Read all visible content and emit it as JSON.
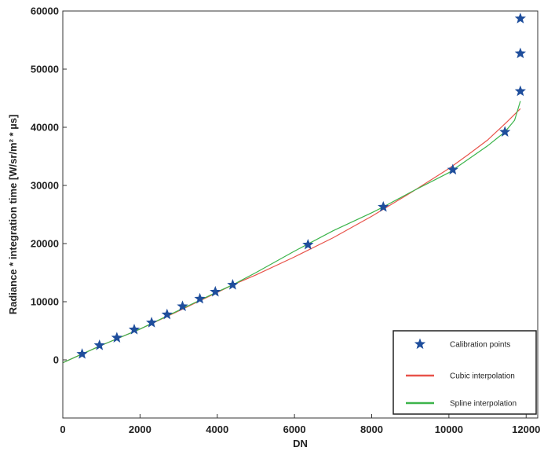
{
  "chart_data": {
    "type": "line",
    "xlabel": "DN",
    "ylabel": "Radiance * integration time [W/sr/m² * µs]",
    "xlim": [
      0,
      12300
    ],
    "ylim": [
      -10000,
      60000
    ],
    "xticks": [
      0,
      2000,
      4000,
      6000,
      8000,
      10000,
      12000
    ],
    "yticks": [
      0,
      10000,
      20000,
      30000,
      40000,
      50000,
      60000
    ],
    "grid": false,
    "legend_position": "bottom-right",
    "colors": {
      "calibration": "#1f4e9c",
      "cubic": "#e8534a",
      "spline": "#3cb44b"
    },
    "series": [
      {
        "name": "Calibration points",
        "kind": "scatter",
        "marker": "star",
        "x": [
          500,
          950,
          1400,
          1850,
          2300,
          2700,
          3100,
          3550,
          3950,
          4400,
          6350,
          8300,
          10100,
          11450,
          11850,
          11850,
          11850
        ],
        "y": [
          1000,
          2500,
          3800,
          5200,
          6400,
          7800,
          9200,
          10500,
          11700,
          12900,
          19800,
          26300,
          32700,
          39200,
          46200,
          52700,
          58700
        ]
      },
      {
        "name": "Cubic interpolation",
        "kind": "line",
        "x": [
          0,
          500,
          1000,
          2000,
          3000,
          4000,
          4400,
          5000,
          6000,
          7000,
          8000,
          8300,
          9000,
          10000,
          10500,
          11000,
          11500,
          11850
        ],
        "y": [
          -500,
          1000,
          2500,
          5300,
          8400,
          11600,
          12900,
          14600,
          17700,
          21000,
          24700,
          25900,
          28700,
          32900,
          35300,
          37800,
          40900,
          43200
        ]
      },
      {
        "name": "Spline interpolation",
        "kind": "line",
        "x": [
          0,
          500,
          1000,
          2000,
          3000,
          4000,
          4400,
          5000,
          6000,
          7000,
          8000,
          8300,
          9000,
          10000,
          10500,
          11000,
          11450,
          11700,
          11850
        ],
        "y": [
          -500,
          1000,
          2500,
          5300,
          8500,
          11700,
          12900,
          15000,
          18700,
          22200,
          25300,
          26300,
          28800,
          32200,
          34500,
          36800,
          39200,
          41200,
          44500
        ]
      }
    ]
  }
}
